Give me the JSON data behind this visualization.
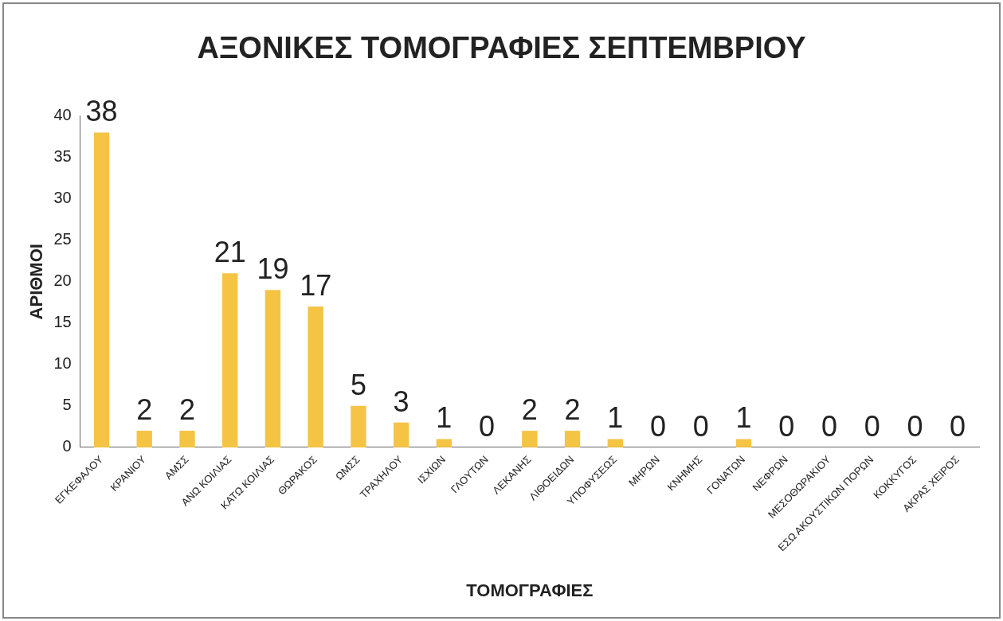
{
  "chart_data": {
    "type": "bar",
    "title": "ΑΞΟΝΙΚΕΣ ΤΟΜΟΓΡΑΦΙΕΣ ΣΕΠΤΕΜΒΡΙΟΥ",
    "xlabel": "ΤΟΜΟΓΡΑΦΙΕΣ",
    "ylabel": "ΑΡΙΘΜΟΙ",
    "categories": [
      "ΕΓΚΕΦΑΛΟΥ",
      "ΚΡΑΝΙΟΥ",
      "ΑΜΣΣ",
      "ΑΝΩ ΚΟΙΛΙΑΣ",
      "ΚΑΤΩ ΚΟΙΛΙΑΣ",
      "ΘΩΡΑΚΟΣ",
      "ΩΜΣΣ",
      "ΤΡΑΧΗΛΟΥ",
      "ΙΣΧΙΩΝ",
      "ΓΛΟΥΤΩΝ",
      "ΛΕΚΑΝΗΣ",
      "ΛΙΘΟΕΙΔΩΝ",
      "ΥΠΟΦΥΣΕΩΣ",
      "ΜΗΡΩΝ",
      "ΚΝΗΜΗΣ",
      "ΓΟΝΑΤΩΝ",
      "ΝΕΦΡΩΝ",
      "ΜΕΣΟΘΩΡΑΚΙΟΥ",
      "ΕΣΩ ΑΚΟΥΣΤΙΚΩΝ ΠΟΡΩΝ",
      "ΚΟΚΚΥΓΟΣ",
      "ΑΚΡΑΣ ΧΕΙΡΟΣ"
    ],
    "values": [
      38,
      2,
      2,
      21,
      19,
      17,
      5,
      3,
      1,
      0,
      2,
      2,
      1,
      0,
      0,
      1,
      0,
      0,
      0,
      0,
      0
    ],
    "color": "#f5c445",
    "ylim": [
      0,
      40
    ],
    "yticks": [
      0,
      5,
      10,
      15,
      20,
      25,
      30,
      35,
      40
    ],
    "grid": false,
    "legend": false,
    "data_labels": true
  }
}
